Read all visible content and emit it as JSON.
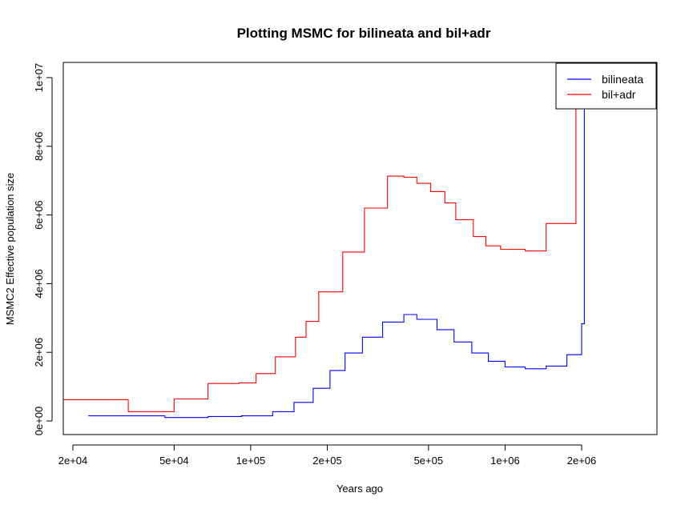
{
  "chart_data": {
    "type": "line",
    "step": true,
    "title": "Plotting MSMC for bilineata and bil+adr",
    "xlabel": "Years ago",
    "ylabel": "MSMC2 Effective population size",
    "x_scale": "log",
    "xlim": [
      18000,
      4000000
    ],
    "ylim": [
      -400000,
      10400000
    ],
    "x_ticks": [
      {
        "value": 20000,
        "label": "2e+04"
      },
      {
        "value": 50000,
        "label": "5e+04"
      },
      {
        "value": 100000,
        "label": "1e+05"
      },
      {
        "value": 200000,
        "label": "2e+05"
      },
      {
        "value": 500000,
        "label": "5e+05"
      },
      {
        "value": 1000000,
        "label": "1e+06"
      },
      {
        "value": 2000000,
        "label": "2e+06"
      }
    ],
    "y_ticks": [
      {
        "value": 0,
        "label": "0e+00"
      },
      {
        "value": 2000000,
        "label": "2e+06"
      },
      {
        "value": 4000000,
        "label": "4e+06"
      },
      {
        "value": 6000000,
        "label": "6e+06"
      },
      {
        "value": 8000000,
        "label": "8e+06"
      },
      {
        "value": 10000000,
        "label": "1e+07"
      }
    ],
    "legend": {
      "position": "top-right"
    },
    "series": [
      {
        "name": "bilineata",
        "color": "#0000ff",
        "x": [
          23000,
          46000,
          68000,
          92000,
          122000,
          148000,
          176000,
          205000,
          235000,
          275000,
          330000,
          400000,
          450000,
          540000,
          630000,
          740000,
          860000,
          1000000,
          1200000,
          1450000,
          1750000,
          2000000
        ],
        "y": [
          150000,
          100000,
          130000,
          150000,
          270000,
          540000,
          950000,
          1470000,
          1980000,
          2440000,
          2880000,
          3100000,
          2960000,
          2660000,
          2300000,
          1980000,
          1740000,
          1570000,
          1520000,
          1600000,
          1930000,
          2830000
        ],
        "end": {
          "x_last_step_end": 2050000,
          "y_tail": [
            5200000,
            10400000
          ]
        }
      },
      {
        "name": "bil+adr",
        "color": "#ff0000",
        "x": [
          18000,
          33000,
          50000,
          68000,
          90000,
          105000,
          125000,
          150000,
          165000,
          185000,
          230000,
          280000,
          345000,
          400000,
          450000,
          510000,
          580000,
          640000,
          750000,
          840000,
          960000,
          1200000,
          1450000,
          1900000
        ],
        "y": [
          620000,
          270000,
          640000,
          1090000,
          1110000,
          1380000,
          1870000,
          2440000,
          2900000,
          3760000,
          4920000,
          6200000,
          7130000,
          7100000,
          6920000,
          6680000,
          6350000,
          5860000,
          5370000,
          5100000,
          5000000,
          4950000,
          5750000,
          10400000
        ]
      }
    ]
  }
}
